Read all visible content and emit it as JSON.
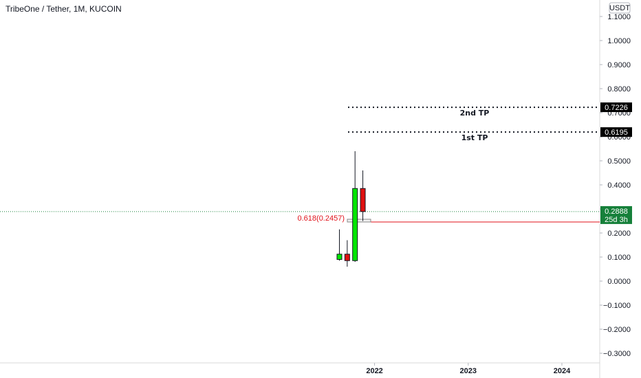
{
  "chart_data": {
    "type": "candlestick",
    "title": "TribeOne / Tether, 1M, KUCOIN",
    "currency": "USDT",
    "ylim": [
      -0.33,
      1.12
    ],
    "y_ticks": [
      "1.1000",
      "1.0000",
      "0.9000",
      "0.8000",
      "0.7000",
      "0.6000",
      "0.5000",
      "0.4000",
      "0.3000",
      "0.2000",
      "0.1000",
      "0.0000",
      "−0.1000",
      "−0.2000",
      "−0.3000"
    ],
    "x_ticks": [
      {
        "label": "2022",
        "index": 11.5
      },
      {
        "label": "2023",
        "index": 23.5
      },
      {
        "label": "2024",
        "index": 35.5
      }
    ],
    "candles": [
      {
        "open": 0.09,
        "high": 0.215,
        "low": 0.085,
        "close": 0.112,
        "color": "green"
      },
      {
        "open": 0.112,
        "high": 0.17,
        "low": 0.06,
        "close": 0.085,
        "color": "red"
      },
      {
        "open": 0.085,
        "high": 0.54,
        "low": 0.08,
        "close": 0.385,
        "color": "green"
      },
      {
        "open": 0.385,
        "high": 0.46,
        "low": 0.25,
        "close": 0.289,
        "color": "red"
      }
    ],
    "candle_start_index": 7,
    "colors": {
      "up": "#00e600",
      "down": "#e01010",
      "fib": "#e0121a",
      "last_price": "#16803a"
    },
    "targets": [
      {
        "label": "2nd TP",
        "value": 0.7226,
        "value_text": "0.7226"
      },
      {
        "label": "1st TP",
        "value": 0.6195,
        "value_text": "0.6195"
      }
    ],
    "fib": {
      "label": "0.618(0.2457)",
      "value": 0.2457
    },
    "last_price": {
      "value": 0.2888,
      "value_text": "0.2888",
      "countdown": "25d 3h"
    }
  }
}
